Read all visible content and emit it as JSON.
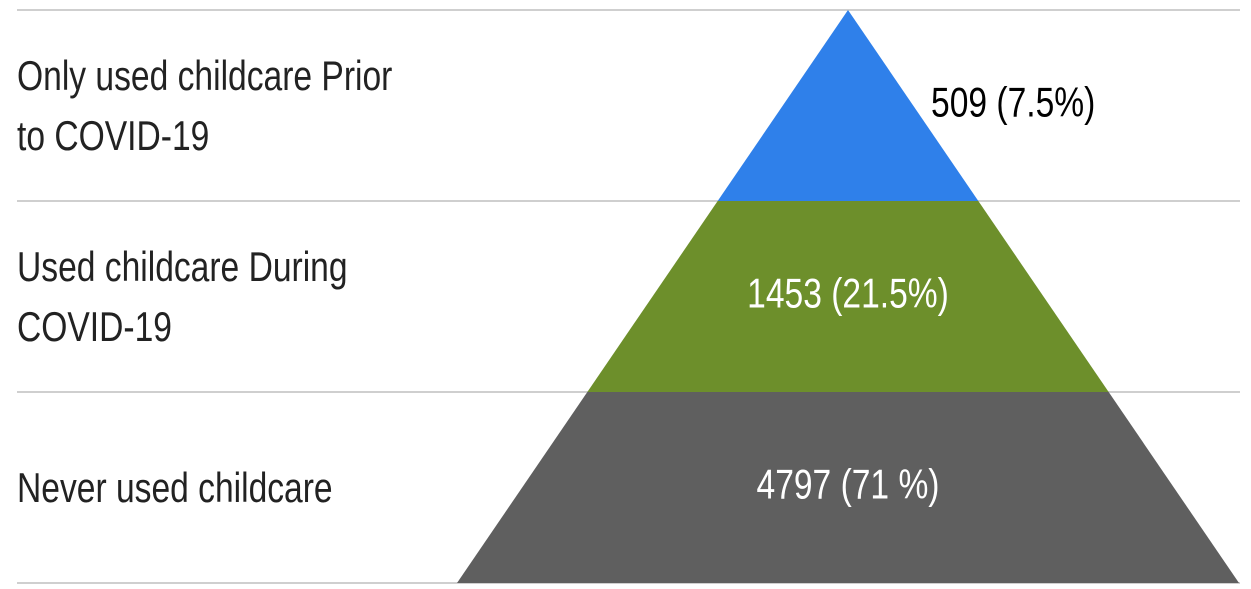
{
  "chart_data": {
    "type": "pyramid",
    "categories": [
      "Only used childcare Prior to COVID-19",
      "Used childcare During COVID-19",
      "Never used childcare"
    ],
    "values": [
      509,
      1453,
      4797
    ],
    "value_labels": [
      "509 (7.5%)",
      "1453 (21.5%)",
      "4797 (71 %)"
    ],
    "colors": [
      "#2f80ea",
      "#6d8f2b",
      "#5f5f5f"
    ]
  }
}
